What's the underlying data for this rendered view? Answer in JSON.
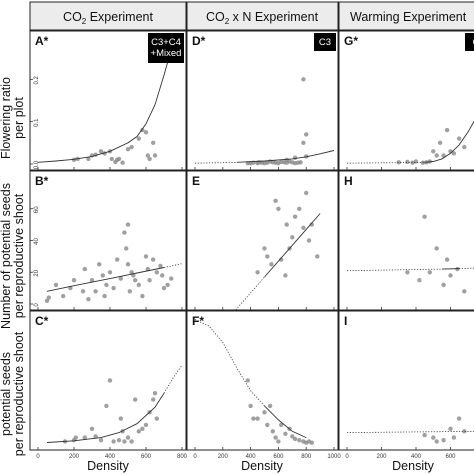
{
  "columns": [
    {
      "main": "CO",
      "sub": "2",
      "tail": " Experiment"
    },
    {
      "main": "CO",
      "sub": "2",
      "tail": " x N Experiment"
    },
    {
      "main": "Warming Experiment",
      "sub": "",
      "tail": ""
    }
  ],
  "row_titles": [
    [
      "Flowering ratio",
      "per plot"
    ],
    [
      "Number of potential seeds",
      "per reproductive shoot"
    ],
    [
      "potential seeds",
      "per reproductive shoot"
    ]
  ],
  "x_axis_title": "Density",
  "colors": {
    "point": "#888888",
    "line": "#333333",
    "header_bg": "#ececec",
    "badge_bg": "#000000"
  },
  "chart_data": [
    {
      "type": "scatter",
      "panel": "A*",
      "badge": [
        "C3+C4",
        "+Mixed"
      ],
      "xlim": [
        0,
        800
      ],
      "ylim": [
        0,
        0.3
      ],
      "yticks": [
        "0.0",
        "0.1",
        "0.2"
      ],
      "points": [
        [
          200,
          0.01
        ],
        [
          220,
          0.012
        ],
        [
          280,
          0.012
        ],
        [
          300,
          0.02
        ],
        [
          320,
          0.022
        ],
        [
          350,
          0.03
        ],
        [
          370,
          0.025
        ],
        [
          400,
          0.03
        ],
        [
          410,
          0.012
        ],
        [
          430,
          0.005
        ],
        [
          440,
          0.01
        ],
        [
          450,
          0.012
        ],
        [
          470,
          0.003
        ],
        [
          500,
          0.035
        ],
        [
          520,
          0.04
        ],
        [
          560,
          0.06
        ],
        [
          580,
          0.08
        ],
        [
          600,
          0.075
        ],
        [
          610,
          0.02
        ],
        [
          620,
          0.012
        ],
        [
          640,
          0.05
        ],
        [
          650,
          0.02
        ],
        [
          660,
          0.25
        ],
        [
          680,
          0.28
        ]
      ],
      "fit_solid": [
        [
          0,
          0.004
        ],
        [
          100,
          0.007
        ],
        [
          200,
          0.011
        ],
        [
          300,
          0.018
        ],
        [
          400,
          0.03
        ],
        [
          500,
          0.05
        ],
        [
          550,
          0.065
        ],
        [
          600,
          0.095
        ],
        [
          650,
          0.14
        ],
        [
          700,
          0.21
        ],
        [
          740,
          0.27
        ]
      ],
      "fit_dotted": []
    },
    {
      "type": "scatter",
      "panel": "D*",
      "badge": [
        "C3"
      ],
      "xlim": [
        0,
        1000
      ],
      "ylim": [
        0,
        0.3
      ],
      "yticks": [],
      "points": [
        [
          380,
          0.002
        ],
        [
          400,
          0.002
        ],
        [
          420,
          0.003
        ],
        [
          450,
          0.002
        ],
        [
          460,
          0.004
        ],
        [
          480,
          0.003
        ],
        [
          500,
          0.002
        ],
        [
          520,
          0.003
        ],
        [
          540,
          0.006
        ],
        [
          560,
          0.004
        ],
        [
          580,
          0.003
        ],
        [
          600,
          0.002
        ],
        [
          620,
          0.005
        ],
        [
          640,
          0.004
        ],
        [
          660,
          0.003
        ],
        [
          680,
          0.006
        ],
        [
          700,
          0.004
        ],
        [
          720,
          0.002
        ],
        [
          740,
          0.003
        ],
        [
          760,
          0.004
        ],
        [
          780,
          0.05
        ],
        [
          800,
          0.07
        ],
        [
          660,
          0.01
        ],
        [
          720,
          0.015
        ],
        [
          800,
          0.018
        ],
        [
          780,
          0.2
        ]
      ],
      "fit_solid": [
        [
          300,
          0.004
        ],
        [
          500,
          0.007
        ],
        [
          700,
          0.012
        ],
        [
          800,
          0.017
        ],
        [
          900,
          0.024
        ],
        [
          1000,
          0.032
        ]
      ],
      "fit_dotted": [
        [
          0,
          0.002
        ],
        [
          100,
          0.0025
        ],
        [
          200,
          0.003
        ],
        [
          300,
          0.004
        ]
      ]
    },
    {
      "type": "scatter",
      "panel": "G*",
      "badge": [
        "C"
      ],
      "xlim": [
        0,
        800
      ],
      "ylim": [
        0,
        0.3
      ],
      "yticks": [],
      "points": [
        [
          300,
          0.004
        ],
        [
          350,
          0.005
        ],
        [
          380,
          0.003
        ],
        [
          400,
          0.006
        ],
        [
          440,
          0.003
        ],
        [
          460,
          0.004
        ],
        [
          480,
          0.006
        ],
        [
          500,
          0.03
        ],
        [
          520,
          0.02
        ],
        [
          540,
          0.05
        ],
        [
          560,
          0.02
        ],
        [
          580,
          0.08
        ],
        [
          600,
          0.03
        ],
        [
          620,
          0.025
        ],
        [
          650,
          0.06
        ],
        [
          680,
          0.04
        ]
      ],
      "fit_solid": [
        [
          450,
          0.004
        ],
        [
          500,
          0.006
        ],
        [
          550,
          0.012
        ],
        [
          600,
          0.025
        ],
        [
          650,
          0.045
        ],
        [
          700,
          0.075
        ],
        [
          750,
          0.11
        ],
        [
          800,
          0.15
        ]
      ],
      "fit_dotted": [
        [
          0,
          0.002
        ],
        [
          150,
          0.0025
        ],
        [
          300,
          0.003
        ],
        [
          450,
          0.004
        ]
      ]
    },
    {
      "type": "scatter",
      "panel": "B*",
      "badge": [],
      "xlim": [
        0,
        800
      ],
      "ylim": [
        0,
        80
      ],
      "yticks": [
        "0",
        "20",
        "40",
        "60"
      ],
      "points": [
        [
          50,
          2
        ],
        [
          60,
          4
        ],
        [
          100,
          12
        ],
        [
          140,
          5
        ],
        [
          180,
          10
        ],
        [
          200,
          15
        ],
        [
          250,
          8
        ],
        [
          260,
          22
        ],
        [
          280,
          3
        ],
        [
          300,
          15
        ],
        [
          320,
          8
        ],
        [
          340,
          25
        ],
        [
          360,
          18
        ],
        [
          370,
          5
        ],
        [
          380,
          12
        ],
        [
          400,
          20
        ],
        [
          420,
          10
        ],
        [
          440,
          28
        ],
        [
          460,
          16
        ],
        [
          480,
          45
        ],
        [
          490,
          35
        ],
        [
          500,
          50
        ],
        [
          500,
          25
        ],
        [
          510,
          8
        ],
        [
          520,
          20
        ],
        [
          530,
          18
        ],
        [
          540,
          15
        ],
        [
          560,
          12
        ],
        [
          580,
          5
        ],
        [
          600,
          30
        ],
        [
          610,
          22
        ],
        [
          620,
          15
        ],
        [
          640,
          28
        ],
        [
          660,
          20
        ],
        [
          680,
          24
        ],
        [
          690,
          18
        ],
        [
          700,
          10
        ],
        [
          720,
          12
        ],
        [
          740,
          16
        ]
      ],
      "fit_solid": [
        [
          50,
          8
        ],
        [
          200,
          11.5
        ],
        [
          400,
          16
        ],
        [
          550,
          19.5
        ],
        [
          700,
          23
        ]
      ],
      "fit_dotted": [
        [
          700,
          23
        ],
        [
          750,
          24.2
        ],
        [
          800,
          25.4
        ]
      ]
    },
    {
      "type": "scatter",
      "panel": "E",
      "badge": [],
      "xlim": [
        0,
        1000
      ],
      "ylim": [
        0,
        80
      ],
      "yticks": [],
      "points": [
        [
          450,
          20
        ],
        [
          500,
          35
        ],
        [
          520,
          30
        ],
        [
          550,
          25
        ],
        [
          580,
          65
        ],
        [
          600,
          60
        ],
        [
          620,
          28
        ],
        [
          650,
          18
        ],
        [
          660,
          50
        ],
        [
          680,
          35
        ],
        [
          700,
          42
        ],
        [
          720,
          55
        ],
        [
          750,
          60
        ],
        [
          780,
          48
        ],
        [
          800,
          70
        ],
        [
          820,
          40
        ],
        [
          840,
          50
        ],
        [
          880,
          30
        ]
      ],
      "fit_solid": [
        [
          500,
          17
        ],
        [
          650,
          32
        ],
        [
          800,
          47
        ],
        [
          900,
          57
        ]
      ],
      "fit_dotted": [
        [
          200,
          -13
        ],
        [
          350,
          2
        ],
        [
          500,
          17
        ]
      ]
    },
    {
      "type": "scatter",
      "panel": "H",
      "badge": [],
      "xlim": [
        0,
        800
      ],
      "ylim": [
        0,
        80
      ],
      "yticks": [],
      "points": [
        [
          350,
          20
        ],
        [
          420,
          15
        ],
        [
          450,
          55
        ],
        [
          480,
          20
        ],
        [
          520,
          35
        ],
        [
          560,
          12
        ],
        [
          580,
          28
        ],
        [
          600,
          18
        ],
        [
          640,
          22
        ],
        [
          680,
          8
        ]
      ],
      "fit_solid": [
        [
          550,
          22
        ],
        [
          650,
          22.3
        ]
      ],
      "fit_dotted": [
        [
          0,
          21
        ],
        [
          550,
          22
        ],
        [
          800,
          22.8
        ]
      ]
    },
    {
      "type": "scatter",
      "panel": "C*",
      "badge": [],
      "xlim": [
        0,
        800
      ],
      "ylim": [
        0,
        1.0
      ],
      "yticks": [],
      "points": [
        [
          150,
          0.02
        ],
        [
          200,
          0.03
        ],
        [
          210,
          0.05
        ],
        [
          260,
          0.05
        ],
        [
          300,
          0.12
        ],
        [
          320,
          0.06
        ],
        [
          350,
          0.03
        ],
        [
          380,
          0.3
        ],
        [
          400,
          0.5
        ],
        [
          420,
          0.02
        ],
        [
          450,
          0.03
        ],
        [
          460,
          0.2
        ],
        [
          470,
          0.1
        ],
        [
          480,
          0.02
        ],
        [
          500,
          0.05
        ],
        [
          520,
          0.02
        ],
        [
          540,
          0.35
        ],
        [
          560,
          0.1
        ],
        [
          580,
          0.12
        ],
        [
          600,
          0.15
        ],
        [
          620,
          0.25
        ],
        [
          640,
          0.35
        ],
        [
          650,
          0.4
        ],
        [
          660,
          0.2
        ]
      ],
      "fit_solid": [
        [
          50,
          0.012
        ],
        [
          200,
          0.025
        ],
        [
          350,
          0.05
        ],
        [
          450,
          0.09
        ],
        [
          550,
          0.16
        ],
        [
          650,
          0.29
        ],
        [
          700,
          0.4
        ]
      ],
      "fit_dotted": [
        [
          700,
          0.4
        ],
        [
          750,
          0.52
        ],
        [
          800,
          0.62
        ]
      ]
    },
    {
      "type": "scatter",
      "panel": "F*",
      "badge": [],
      "xlim": [
        0,
        1000
      ],
      "ylim": [
        0,
        1.0
      ],
      "yticks": [],
      "points": [
        [
          380,
          0.5
        ],
        [
          400,
          0.3
        ],
        [
          420,
          0.2
        ],
        [
          450,
          0.2
        ],
        [
          500,
          0.25
        ],
        [
          520,
          0.15
        ],
        [
          540,
          0.3
        ],
        [
          560,
          0.1
        ],
        [
          580,
          0.05
        ],
        [
          600,
          0.02
        ],
        [
          620,
          0.15
        ],
        [
          650,
          0.08
        ],
        [
          680,
          0.12
        ],
        [
          700,
          0.06
        ],
        [
          720,
          0.04
        ],
        [
          750,
          0.03
        ],
        [
          780,
          0.02
        ],
        [
          800,
          0.01
        ],
        [
          820,
          0.02
        ],
        [
          840,
          0.01
        ]
      ],
      "fit_solid": [
        [
          500,
          0.3
        ],
        [
          600,
          0.19
        ],
        [
          700,
          0.1
        ],
        [
          800,
          0.05
        ]
      ],
      "fit_dotted": [
        [
          0,
          0.98
        ],
        [
          100,
          0.93
        ],
        [
          200,
          0.8
        ],
        [
          300,
          0.6
        ],
        [
          400,
          0.42
        ],
        [
          500,
          0.3
        ]
      ]
    },
    {
      "type": "scatter",
      "panel": "I",
      "badge": [],
      "xlim": [
        0,
        800
      ],
      "ylim": [
        0,
        1.0
      ],
      "yticks": [],
      "points": [
        [
          450,
          0.07
        ],
        [
          500,
          0.05
        ],
        [
          520,
          0.02
        ],
        [
          560,
          0.03
        ],
        [
          600,
          0.12
        ],
        [
          620,
          0.05
        ],
        [
          650,
          0.2
        ],
        [
          680,
          0.1
        ]
      ],
      "fit_solid": [],
      "fit_dotted": [
        [
          0,
          0.09
        ],
        [
          400,
          0.095
        ],
        [
          800,
          0.1
        ]
      ]
    }
  ],
  "x_tick_labels": [
    [
      "0",
      "200",
      "400",
      "600",
      "800"
    ],
    [
      "0",
      "200",
      "400",
      "600",
      "800",
      "1000"
    ],
    [
      "0",
      "200",
      "400",
      "600"
    ]
  ]
}
